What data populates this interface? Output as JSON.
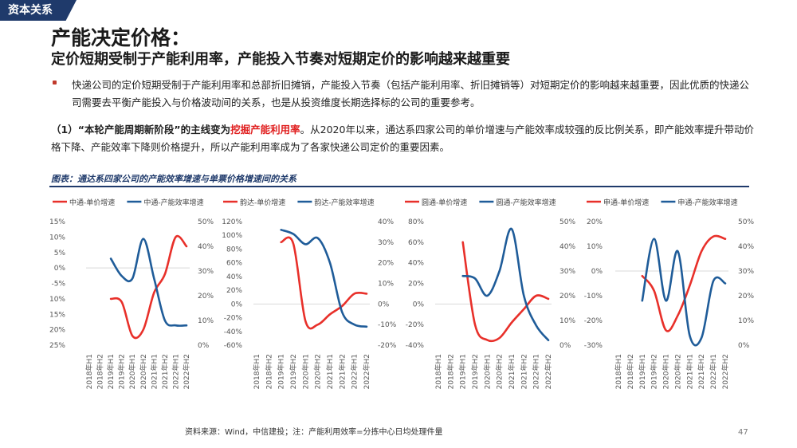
{
  "header": {
    "tag": "资本关系",
    "title": "产能决定价格：",
    "subtitle": "定价短期受制于产能利用率，产能投入节奏对短期定价的影响越来越重要"
  },
  "body": {
    "bullet_text": "快递公司的定价短期受制于产能利用率和总部折旧摊销，产能投入节奏（包括产能利用率、折旧摊销等）对短期定价的影响越来越重要，因此优质的快递公司需要去平衡产能投入与价格波动间的关系，也是从投资维度长期选择标的公司的重要参考。",
    "point_prefix": "（1）“本轮产能周期新阶段”的主线变为",
    "point_highlight": "挖掘产能利用率",
    "point_rest": "。从2020年以来，通达系四家公司的单价增速与产能效率成较强的反比例关系，即产能效率提升带动价格下降、产能效率下降则价格提升，所以产能利用率成为了各家快递公司定价的重要因素。"
  },
  "figure": {
    "title": "图表：通达系四家公司的产能效率增速与单票价格增速间的关系",
    "source": "资料来源：Wind，中信建投；注：产能利用效率=分拣中心日均处理件量",
    "page_number": "47"
  },
  "colors": {
    "price": "#e8302a",
    "efficiency": "#1f5c99",
    "brand": "#1f3a6b",
    "grid": "#d9d9d9"
  },
  "chart_data": [
    {
      "type": "line",
      "categories": [
        "2018年H1",
        "2018年H2",
        "2019年H1",
        "2019年H2",
        "2020年H1",
        "2020年H2",
        "2021年H1",
        "2021年H2",
        "2022年H1",
        "2022年H2"
      ],
      "series": [
        {
          "name": "中通-单价增速",
          "axis": "left",
          "color": "#e8302a",
          "values": [
            null,
            null,
            -10,
            -11,
            -22,
            -20,
            -8,
            -2,
            10,
            7
          ]
        },
        {
          "name": "中通-产能效率增速",
          "axis": "right",
          "color": "#1f5c99",
          "values": [
            null,
            null,
            35,
            28,
            27,
            43,
            27,
            10,
            8,
            8
          ]
        }
      ],
      "left_axis": {
        "ticks": [
          "15%",
          "10%",
          "5%",
          "0%",
          "-5%",
          "-10%",
          "-15%",
          "-20%",
          "-25%"
        ],
        "min": -25,
        "max": 15
      },
      "right_axis": {
        "ticks": [
          "50%",
          "40%",
          "30%",
          "20%",
          "10%",
          "0%"
        ],
        "min": 0,
        "max": 50
      }
    },
    {
      "type": "line",
      "categories": [
        "2018年H1",
        "2018年H2",
        "2019年H1",
        "2019年H2",
        "2020年H1",
        "2020年H2",
        "2021年H1",
        "2021年H2",
        "2022年H1",
        "2022年H2"
      ],
      "series": [
        {
          "name": "韵达-单价增速",
          "axis": "left",
          "color": "#e8302a",
          "values": [
            null,
            null,
            90,
            88,
            -25,
            -30,
            -15,
            -3,
            15,
            15
          ]
        },
        {
          "name": "韵达-产能效率增速",
          "axis": "right",
          "color": "#1f5c99",
          "values": [
            null,
            null,
            36,
            34,
            29,
            32,
            20,
            -4,
            -10,
            -11
          ]
        }
      ],
      "left_axis": {
        "ticks": [
          "120%",
          "100%",
          "80%",
          "60%",
          "40%",
          "20%",
          "0%",
          "-20%",
          "-40%",
          "-60%"
        ],
        "min": -60,
        "max": 120
      },
      "right_axis": {
        "ticks": [
          "40%",
          "30%",
          "20%",
          "10%",
          "0%",
          "-10%",
          "-20%"
        ],
        "min": -20,
        "max": 40
      }
    },
    {
      "type": "line",
      "categories": [
        "2018年H1",
        "2018年H2",
        "2019年H1",
        "2019年H2",
        "2020年H1",
        "2020年H2",
        "2021年H1",
        "2021年H2",
        "2022年H1",
        "2022年H2"
      ],
      "series": [
        {
          "name": "圆通-单价增速",
          "axis": "left",
          "color": "#e8302a",
          "values": [
            null,
            null,
            60,
            -20,
            -35,
            -33,
            -18,
            -5,
            8,
            5
          ]
        },
        {
          "name": "圆通-产能效率增速",
          "axis": "right",
          "color": "#1f5c99",
          "values": [
            null,
            null,
            28,
            27,
            20,
            30,
            47,
            20,
            8,
            2
          ]
        }
      ],
      "left_axis": {
        "ticks": [
          "80%",
          "60%",
          "40%",
          "20%",
          "0%",
          "-20%",
          "-40%"
        ],
        "min": -40,
        "max": 80
      },
      "right_axis": {
        "ticks": [
          "50%",
          "40%",
          "30%",
          "20%",
          "10%",
          "0%"
        ],
        "min": 0,
        "max": 50
      }
    },
    {
      "type": "line",
      "categories": [
        "2018年H1",
        "2018年H2",
        "2019年H1",
        "2019年H2",
        "2020年H1",
        "2020年H2",
        "2021年H1",
        "2021年H2",
        "2022年H1",
        "2022年H2"
      ],
      "series": [
        {
          "name": "申通-单价增速",
          "axis": "left",
          "color": "#e8302a",
          "values": [
            null,
            null,
            -2,
            -8,
            -24,
            -18,
            -6,
            8,
            14,
            13
          ]
        },
        {
          "name": "申通-产能效率增速",
          "axis": "right",
          "color": "#1f5c99",
          "values": [
            null,
            null,
            18,
            43,
            18,
            38,
            4,
            3,
            26,
            25
          ]
        }
      ],
      "left_axis": {
        "ticks": [
          "20%",
          "10%",
          "0%",
          "-10%",
          "-20%",
          "-30%"
        ],
        "min": -30,
        "max": 20
      },
      "right_axis": {
        "ticks": [
          "50%",
          "40%",
          "30%",
          "20%",
          "10%",
          "0%"
        ],
        "min": 0,
        "max": 50
      }
    }
  ]
}
